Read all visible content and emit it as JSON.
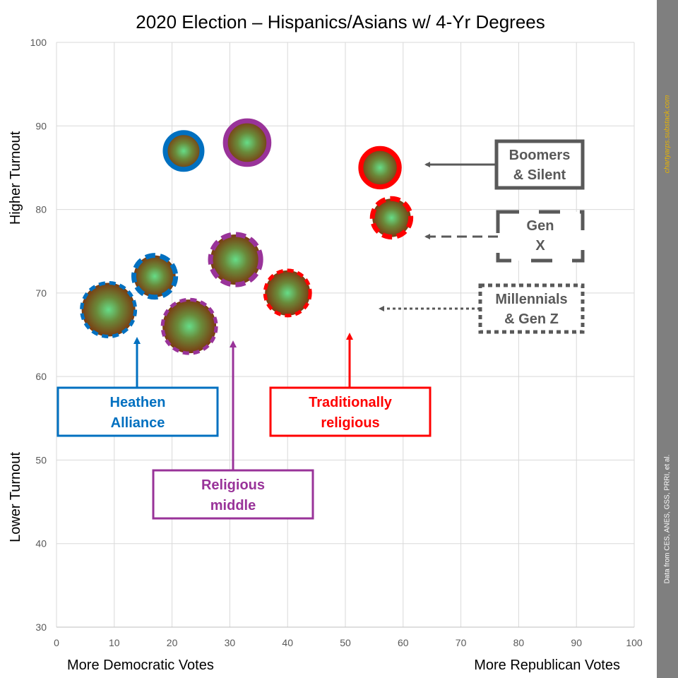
{
  "chart_data": {
    "type": "scatter",
    "title": "2020 Election – Hispanics/Asians w/ 4-Yr Degrees",
    "xlabel_left": "More Democratic Votes",
    "xlabel_right": "More Republican Votes",
    "ylabel_top": "Higher Turnout",
    "ylabel_bottom": "Lower Turnout",
    "xlim": [
      0,
      100
    ],
    "ylim": [
      30,
      100
    ],
    "xticks": [
      0,
      10,
      20,
      30,
      40,
      50,
      60,
      70,
      80,
      90,
      100
    ],
    "yticks": [
      30,
      40,
      50,
      60,
      70,
      80,
      90,
      100
    ],
    "grid": true,
    "colors": {
      "heathen": "#0070c0",
      "middle": "#993399",
      "traditional": "#ff0000",
      "generation": "#595959",
      "bubble_center": "#66dd88",
      "bubble_edge": "#7a3a10"
    },
    "points": [
      {
        "x": 22,
        "y": 87,
        "group": "heathen",
        "generation": "boomers",
        "size": 1
      },
      {
        "x": 17,
        "y": 72,
        "group": "heathen",
        "generation": "genx",
        "size": 1.3
      },
      {
        "x": 9,
        "y": 68,
        "group": "heathen",
        "generation": "millennials",
        "size": 2
      },
      {
        "x": 33,
        "y": 88,
        "group": "middle",
        "generation": "boomers",
        "size": 1.4
      },
      {
        "x": 31,
        "y": 74,
        "group": "middle",
        "generation": "genx",
        "size": 1.8
      },
      {
        "x": 23,
        "y": 66,
        "group": "middle",
        "generation": "millennials",
        "size": 2
      },
      {
        "x": 56,
        "y": 85,
        "group": "traditional",
        "generation": "boomers",
        "size": 1.1
      },
      {
        "x": 58,
        "y": 79,
        "group": "traditional",
        "generation": "genx",
        "size": 1.1
      },
      {
        "x": 40,
        "y": 70,
        "group": "traditional",
        "generation": "millennials",
        "size": 1.5
      }
    ],
    "group_labels": [
      {
        "text": [
          "Heathen",
          "Alliance"
        ],
        "color": "#0070c0"
      },
      {
        "text": [
          "Religious",
          "middle"
        ],
        "color": "#993399"
      },
      {
        "text": [
          "Traditionally",
          "religious"
        ],
        "color": "#ff0000"
      }
    ],
    "generation_labels": [
      {
        "text": [
          "Boomers",
          "& Silent"
        ],
        "style": "solid"
      },
      {
        "text": [
          "Gen",
          "X"
        ],
        "style": "dashed"
      },
      {
        "text": [
          "Millennials",
          "& Gen Z"
        ],
        "style": "dotted"
      }
    ]
  },
  "sidebar": {
    "source": "Data from CES, ANES, GSS, PRRI, et al.",
    "brand": "chartyarps.substack.com"
  }
}
